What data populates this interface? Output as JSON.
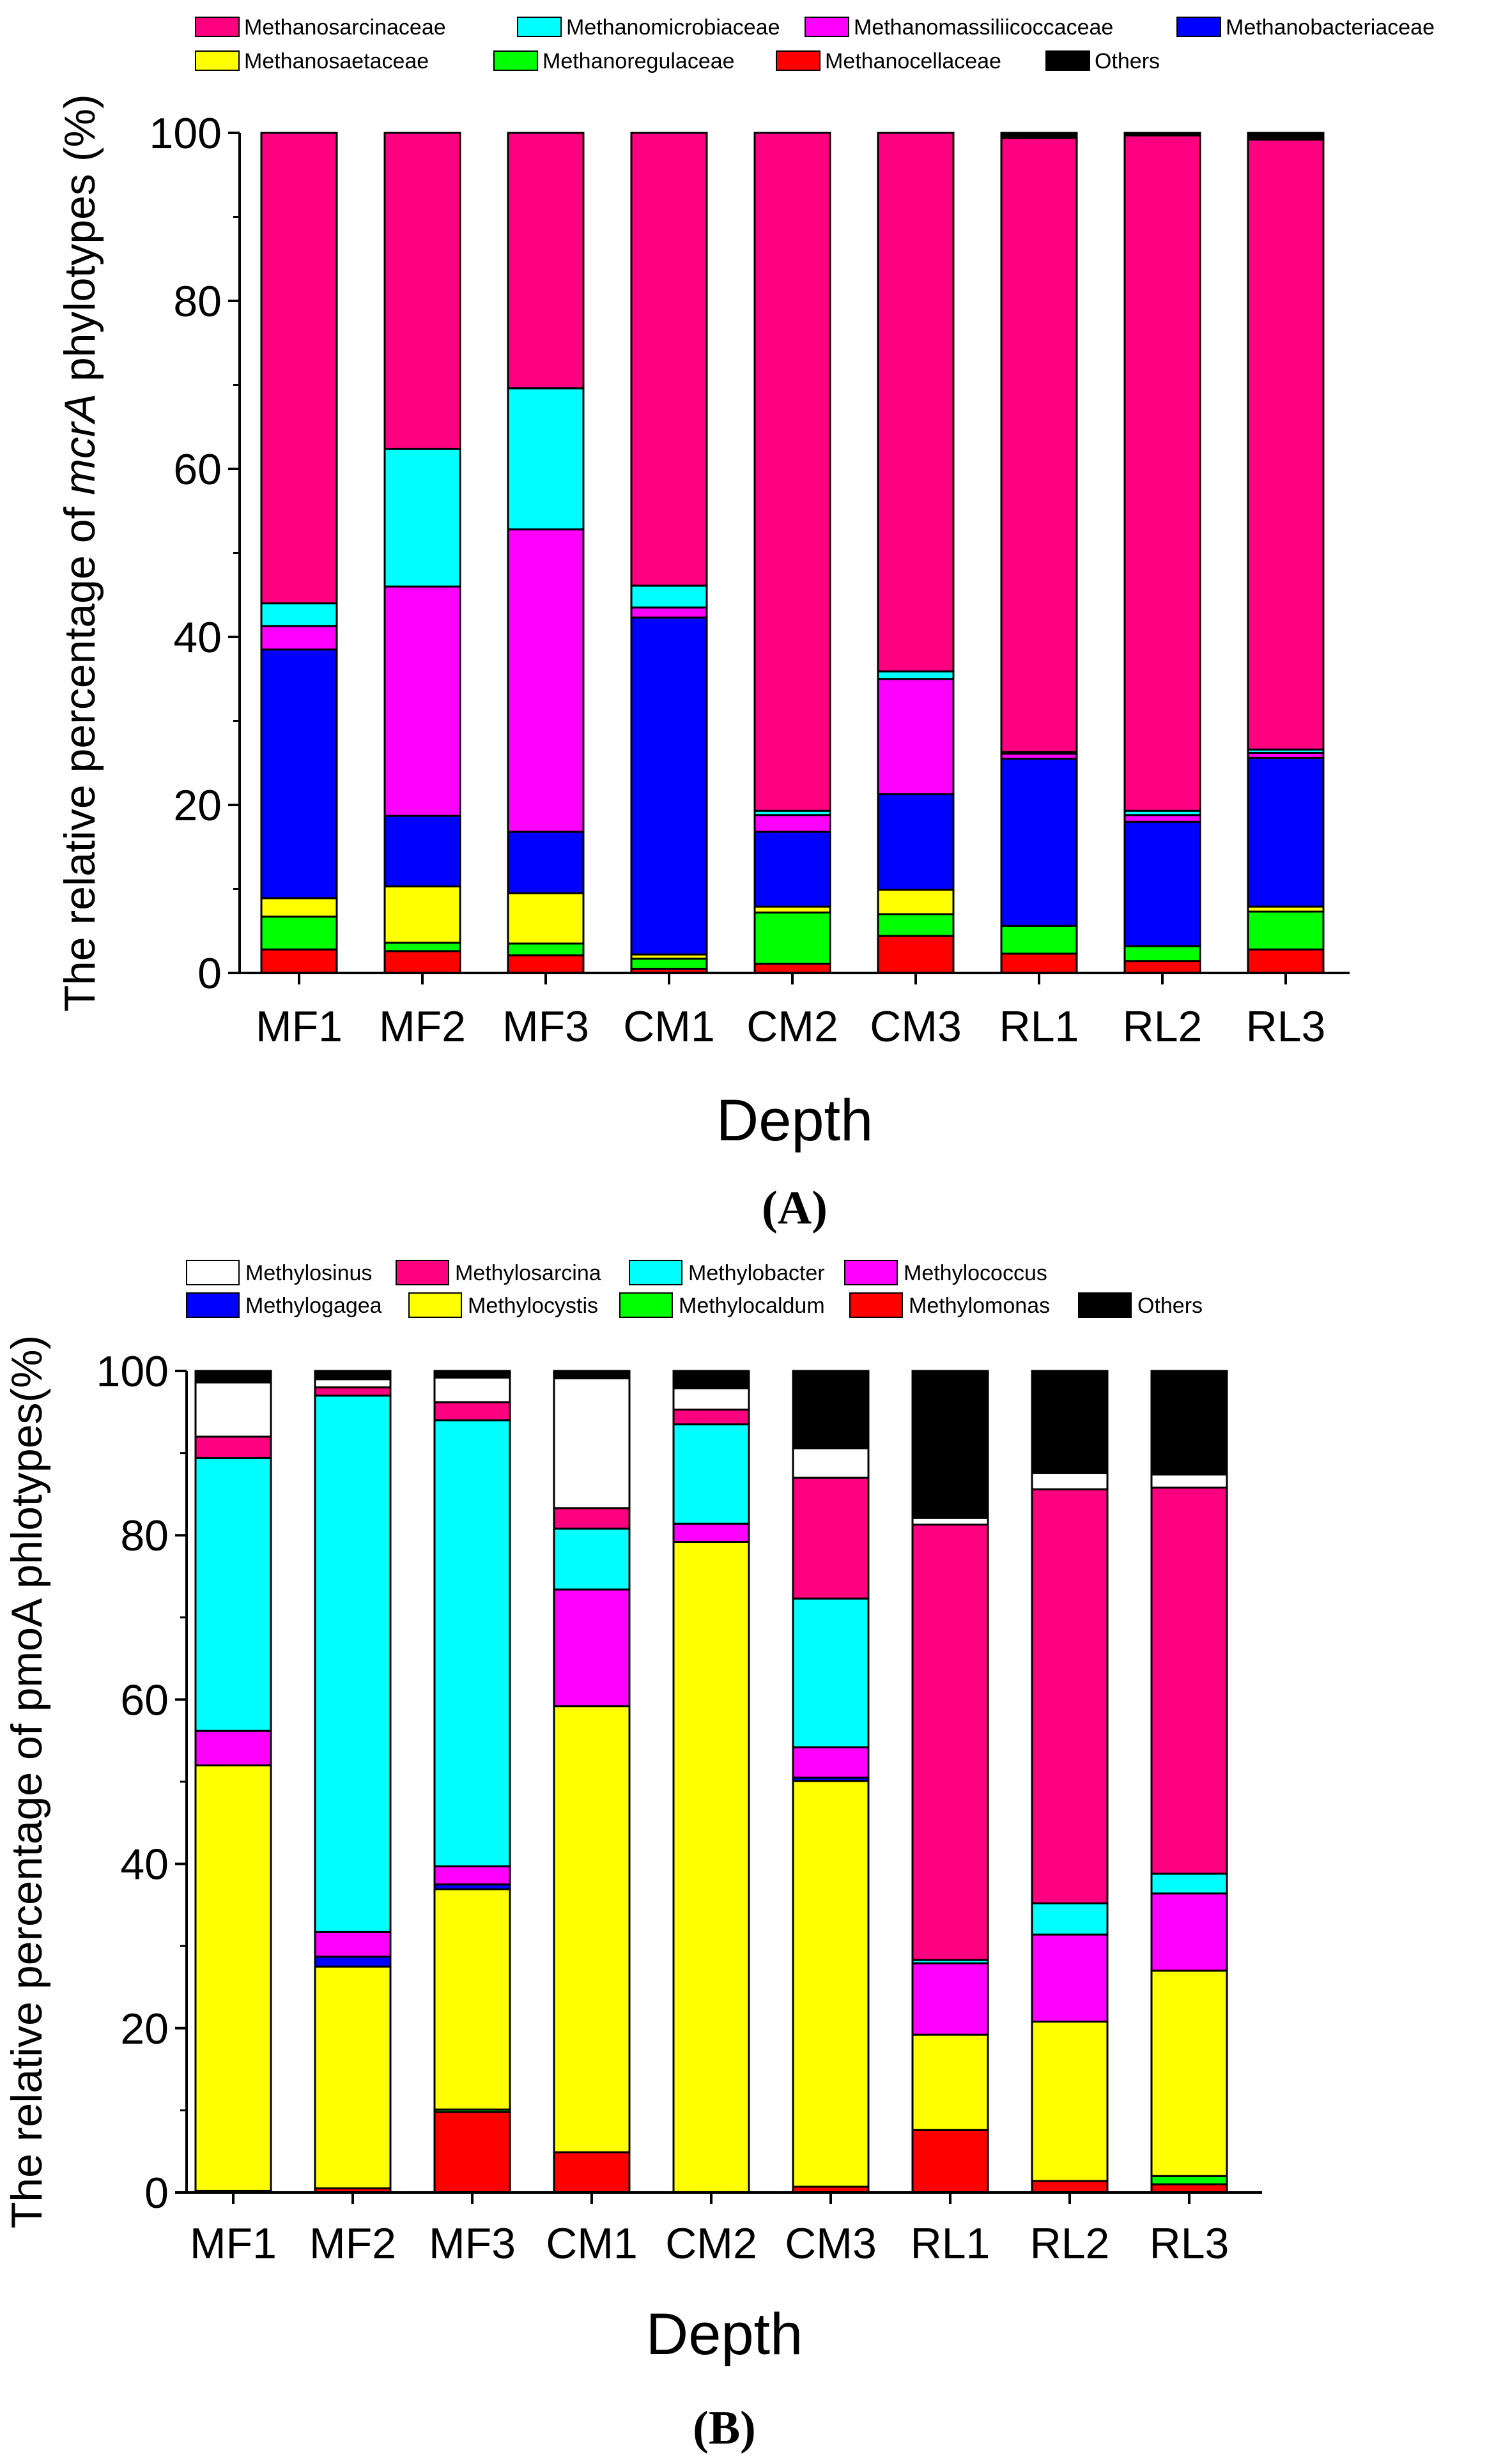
{
  "chart_data": [
    {
      "type": "bar",
      "stacked": true,
      "panel_label": "(A)",
      "xlabel": "Depth",
      "ylabel_pre": "The relative percentage of ",
      "ylabel_italic": "mcrA",
      "ylabel_post": " phylotypes (%)",
      "ylim": [
        0,
        100
      ],
      "yticks": [
        0,
        20,
        40,
        60,
        80,
        100
      ],
      "legend_position": "top",
      "categories": [
        "MF1",
        "MF2",
        "MF3",
        "CM1",
        "CM2",
        "CM3",
        "RL1",
        "RL2",
        "RL3"
      ],
      "series": [
        {
          "name": "Methanocellaceae",
          "color": "#FF0000",
          "values": [
            2.8,
            2.6,
            2.1,
            0.5,
            1.1,
            4.4,
            2.3,
            1.4,
            2.8
          ]
        },
        {
          "name": "Methanoregulaceae",
          "color": "#00FF00",
          "values": [
            3.9,
            1.0,
            1.4,
            1.2,
            6.1,
            2.6,
            3.3,
            1.8,
            4.5
          ]
        },
        {
          "name": "Methanosaetaceae",
          "color": "#FFFF00",
          "values": [
            2.2,
            6.7,
            6.0,
            0.5,
            0.7,
            2.9,
            0.0,
            0.0,
            0.6
          ]
        },
        {
          "name": "Methanobacteriaceae",
          "color": "#0000FF",
          "values": [
            29.6,
            8.4,
            7.3,
            40.1,
            8.9,
            11.4,
            19.9,
            14.8,
            17.7
          ]
        },
        {
          "name": "Methanomassiliicoccaceae",
          "color": "#FF00FF",
          "values": [
            2.8,
            27.3,
            36.0,
            1.2,
            2.0,
            13.7,
            0.6,
            0.8,
            0.6
          ]
        },
        {
          "name": "Methanomicrobiaceae",
          "color": "#00FFFF",
          "values": [
            2.7,
            16.4,
            16.8,
            2.6,
            0.5,
            0.9,
            0.2,
            0.5,
            0.4
          ]
        },
        {
          "name": "Methanosarcinaceae",
          "color": "#FF0080",
          "values": [
            56.0,
            37.6,
            30.4,
            53.9,
            80.7,
            64.1,
            73.1,
            80.4,
            72.6
          ]
        },
        {
          "name": "Others",
          "color": "#000000",
          "values": [
            0,
            0,
            0,
            0,
            0,
            0,
            0.6,
            0.3,
            0.8
          ]
        }
      ],
      "legend_rows": [
        [
          "Methanosarcinaceae",
          "Methanomicrobiaceae",
          "Methanomassiliicoccaceae",
          "Methanobacteriaceae"
        ],
        [
          "Methanosaetaceae",
          "Methanoregulaceae",
          "Methanocellaceae",
          "Others"
        ]
      ]
    },
    {
      "type": "bar",
      "stacked": true,
      "panel_label": "(B)",
      "xlabel": "Depth",
      "ylabel_pre": "The relative percentage of pmoA phlotypes(%)",
      "ylabel_italic": "",
      "ylabel_post": "",
      "ylim": [
        0,
        100
      ],
      "yticks": [
        0,
        20,
        40,
        60,
        80,
        100
      ],
      "legend_position": "top",
      "categories": [
        "MF1",
        "MF2",
        "MF3",
        "CM1",
        "CM2",
        "CM3",
        "RL1",
        "RL2",
        "RL3"
      ],
      "series": [
        {
          "name": "Methylomonas",
          "color": "#FF0000",
          "values": [
            0.2,
            0.5,
            9.8,
            4.9,
            0.0,
            0.7,
            7.6,
            1.4,
            1.0
          ]
        },
        {
          "name": "Methylocaldum",
          "color": "#00FF00",
          "values": [
            0.0,
            0.0,
            0.3,
            0.0,
            0.0,
            0.0,
            0.0,
            0.0,
            1.0
          ]
        },
        {
          "name": "Methylocystis",
          "color": "#FFFF00",
          "values": [
            51.8,
            27.0,
            26.8,
            54.3,
            79.2,
            49.4,
            11.6,
            19.4,
            25.0
          ]
        },
        {
          "name": "Methylogagea",
          "color": "#0000FF",
          "values": [
            0.0,
            1.2,
            0.6,
            0.0,
            0.0,
            0.4,
            0.0,
            0.0,
            0.0
          ]
        },
        {
          "name": "Methylococcus",
          "color": "#FF00FF",
          "values": [
            4.2,
            3.0,
            2.2,
            14.2,
            2.2,
            3.7,
            8.7,
            10.6,
            9.4
          ]
        },
        {
          "name": "Methylobacter",
          "color": "#00FFFF",
          "values": [
            33.2,
            65.3,
            54.3,
            7.4,
            12.1,
            18.1,
            0.4,
            3.8,
            2.4
          ]
        },
        {
          "name": "Methylosarcina",
          "color": "#FF0080",
          "values": [
            2.6,
            1.0,
            2.2,
            2.5,
            1.8,
            14.7,
            53.0,
            50.4,
            47.0
          ]
        },
        {
          "name": "Methylosinus",
          "color": "#FFFFFF",
          "values": [
            6.6,
            1.0,
            3.0,
            15.8,
            2.6,
            3.6,
            0.8,
            2.0,
            1.6
          ]
        },
        {
          "name": "Others",
          "color": "#000000",
          "values": [
            1.4,
            1.0,
            0.8,
            0.9,
            2.1,
            9.4,
            17.9,
            12.4,
            12.6
          ]
        }
      ],
      "legend_rows": [
        [
          "Methylosinus",
          "Methylosarcina",
          "Methylobacter",
          "Methylococcus"
        ],
        [
          "Methylogagea",
          "Methylocystis",
          "Methylocaldum",
          "Methylomonas",
          "Others"
        ]
      ]
    }
  ]
}
